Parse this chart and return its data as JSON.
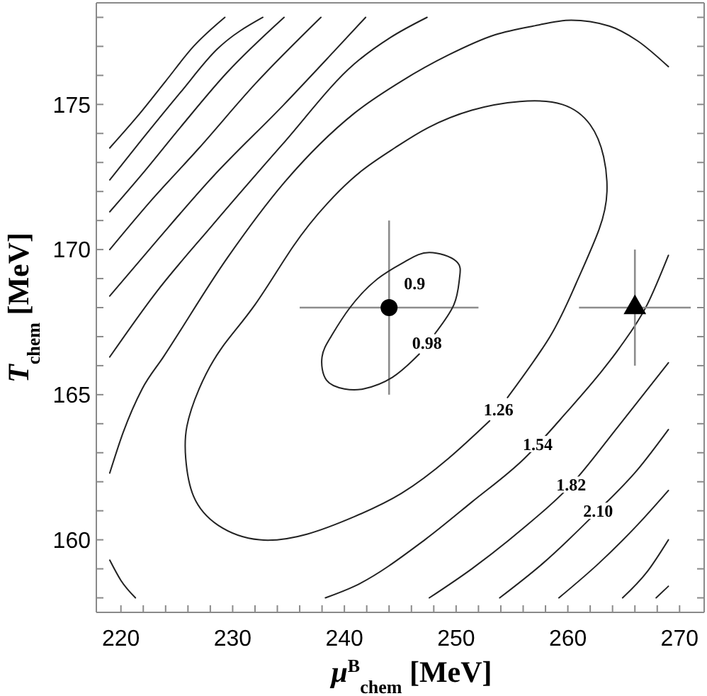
{
  "chart_data": {
    "type": "scatter",
    "xlabel": "μ$^{B}$$_{chem}$ [MeV]",
    "ylabel": "T$_{chem}$ [MeV]",
    "xlim": [
      217.8,
      272.2
    ],
    "ylim": [
      157.5,
      178.5
    ],
    "xticks": [
      220,
      {
        "value": 222,
        "label": null
      },
      {
        "value": 224,
        "label": null
      },
      {
        "value": 226,
        "label": null
      },
      {
        "value": 228,
        "label": null
      },
      230,
      {
        "value": 232,
        "label": null
      },
      {
        "value": 234,
        "label": null
      },
      {
        "value": 236,
        "label": null
      },
      {
        "value": 238,
        "label": null
      },
      240,
      {
        "value": 242,
        "label": null
      },
      {
        "value": 244,
        "label": null
      },
      {
        "value": 246,
        "label": null
      },
      {
        "value": 248,
        "label": null
      },
      250,
      {
        "value": 252,
        "label": null
      },
      {
        "value": 254,
        "label": null
      },
      {
        "value": 256,
        "label": null
      },
      {
        "value": 258,
        "label": null
      },
      260,
      {
        "value": 262,
        "label": null
      },
      {
        "value": 264,
        "label": null
      },
      {
        "value": 266,
        "label": null
      },
      {
        "value": 268,
        "label": null
      },
      270
    ],
    "yticks": [
      {
        "value": 158,
        "label": null
      },
      {
        "value": 159,
        "label": null
      },
      160,
      {
        "value": 161,
        "label": null
      },
      {
        "value": 162,
        "label": null
      },
      {
        "value": 163,
        "label": null
      },
      {
        "value": 164,
        "label": null
      },
      165,
      {
        "value": 166,
        "label": null
      },
      {
        "value": 167,
        "label": null
      },
      {
        "value": 168,
        "label": null
      },
      {
        "value": 169,
        "label": null
      },
      170,
      {
        "value": 171,
        "label": null
      },
      {
        "value": 172,
        "label": null
      },
      {
        "value": 173,
        "label": null
      },
      {
        "value": 174,
        "label": null
      },
      175,
      {
        "value": 176,
        "label": null
      },
      {
        "value": 177,
        "label": null
      },
      {
        "value": 178,
        "label": null
      }
    ],
    "series": [
      {
        "type": "line",
        "color": "#222222",
        "x": [
          219.0,
          220.0,
          221.3
        ],
        "values": [
          159.3,
          158.6,
          158.0
        ]
      },
      {
        "type": "line",
        "color": "#222222",
        "x": [
          238.3,
          240.9,
          247.2,
          251.4,
          256.1,
          259.9,
          262.8,
          264.6,
          267.1,
          269.0
        ],
        "values": [
          158.0,
          158.4,
          160.0,
          161.3,
          162.8,
          164.4,
          165.7,
          166.6,
          168.1,
          169.8
        ]
      },
      {
        "type": "line",
        "color": "#222222",
        "x": [
          219.0,
          220.2,
          221.9,
          223.8,
          229.5,
          234.6,
          240.9,
          245.1,
          249.3,
          253.5,
          256.9,
          260.3,
          263.7,
          266.2,
          269.0
        ],
        "values": [
          162.3,
          163.7,
          165.2,
          166.3,
          169.7,
          172.3,
          174.7,
          175.8,
          176.7,
          177.4,
          177.7,
          177.9,
          177.7,
          177.2,
          176.3
        ]
      },
      {
        "type": "line",
        "color": "#222222",
        "x": [
          219.0,
          223.1,
          228.1,
          234.4,
          240.9,
          244.1,
          247.4
        ],
        "values": [
          166.3,
          168.5,
          170.8,
          173.6,
          176.4,
          177.3,
          178.0
        ]
      },
      {
        "type": "line",
        "color": "#222222",
        "x": [
          247.6,
          251.4,
          255.7,
          260.3,
          264.5,
          269.0
        ],
        "values": [
          158.0,
          159.0,
          160.3,
          161.9,
          163.9,
          166.1
        ]
      },
      {
        "type": "line",
        "color": "#222222",
        "x": [
          219.0,
          223.2,
          228.2,
          234.6,
          239.0,
          241.9
        ],
        "values": [
          168.4,
          170.3,
          172.5,
          175.0,
          176.8,
          178.0
        ]
      },
      {
        "type": "line",
        "color": "#222222",
        "x": [
          253.9,
          257.8,
          262.7,
          266.2,
          269.0
        ],
        "values": [
          158.0,
          159.2,
          161.0,
          162.4,
          163.8
        ]
      },
      {
        "type": "line",
        "color": "#222222",
        "x": [
          219.0,
          222.5,
          227.0,
          232.0,
          237.9
        ],
        "values": [
          170.0,
          171.6,
          173.5,
          175.7,
          178.0
        ]
      },
      {
        "type": "line",
        "color": "#222222",
        "x": [
          259.2,
          262.8,
          266.2,
          269.0
        ],
        "values": [
          158.0,
          159.2,
          160.5,
          161.7
        ]
      },
      {
        "type": "line",
        "color": "#222222",
        "x": [
          219.0,
          221.9,
          225.3,
          229.5,
          234.6
        ],
        "values": [
          171.3,
          172.6,
          174.2,
          176.1,
          178.0
        ]
      },
      {
        "type": "line",
        "color": "#222222",
        "x": [
          264.9,
          267.1,
          269.0
        ],
        "values": [
          158.0,
          158.9,
          160.0
        ]
      },
      {
        "type": "line",
        "color": "#222222",
        "x": [
          219.0,
          221.9,
          225.3,
          228.6,
          232.7
        ],
        "values": [
          172.4,
          173.8,
          175.4,
          176.9,
          178.0
        ]
      },
      {
        "type": "line",
        "color": "#222222",
        "x": [
          267.9,
          269.0
        ],
        "values": [
          158.0,
          158.4
        ]
      },
      {
        "type": "line",
        "color": "#222222",
        "x": [
          219.0,
          221.5,
          224.0,
          226.5,
          229.3
        ],
        "values": [
          173.5,
          174.6,
          175.8,
          177.0,
          178.0
        ]
      },
      {
        "color": "#000000",
        "marker": "circle",
        "x": [
          244
        ],
        "values": [
          168
        ],
        "errors": [
          3
        ],
        "xerrors": [
          8
        ]
      },
      {
        "color": "#000000",
        "marker": "triangle",
        "x": [
          266
        ],
        "values": [
          168
        ],
        "errors": [
          2
        ],
        "xerrors": [
          5
        ]
      },
      {
        "type": "line",
        "color": "#222222",
        "x": [
          248.1,
          249.8,
          250.3,
          250.0,
          247.6,
          245.5,
          243.0,
          240.5,
          238.8,
          238.0,
          238.4,
          240.0,
          241.7,
          244.3,
          246.7
        ],
        "values": [
          167.1,
          168.1,
          169.0,
          169.6,
          169.9,
          169.6,
          169.0,
          168.0,
          167.0,
          166.3,
          165.5,
          165.2,
          165.2,
          165.6,
          166.4
        ]
      },
      {
        "type": "line",
        "color": "#222222",
        "x": [
          254.6,
          258.4,
          260.7,
          262.8,
          263.5,
          263.2,
          262.0,
          259.5,
          255.7,
          251.4,
          247.5,
          244.5,
          241.5,
          238.5,
          235.4,
          232.0,
          229.0,
          227.0,
          225.9,
          225.8,
          226.5,
          228.7,
          232.4,
          236.7,
          240.9,
          245.1,
          249.3,
          253.0
        ],
        "values": [
          164.9,
          167.0,
          168.8,
          170.7,
          172.0,
          173.2,
          174.3,
          175.0,
          175.1,
          174.8,
          174.2,
          173.5,
          172.7,
          171.6,
          170.1,
          168.1,
          166.6,
          165.2,
          163.9,
          162.8,
          161.5,
          160.5,
          160.0,
          160.2,
          160.8,
          161.6,
          162.8,
          164.1
        ]
      }
    ],
    "annotations": [
      {
        "text": "0.9",
        "x": 244,
        "y": 168
      },
      {
        "text": "0.98",
        "x": 247.4,
        "y": 166.8
      },
      {
        "text": "1.26",
        "x": 253.8,
        "y": 164.5
      },
      {
        "text": "1.54",
        "x": 257.3,
        "y": 163.3
      },
      {
        "text": "1.82",
        "x": 260.3,
        "y": 161.9
      },
      {
        "text": "2.10",
        "x": 262.7,
        "y": 161.0
      }
    ]
  }
}
